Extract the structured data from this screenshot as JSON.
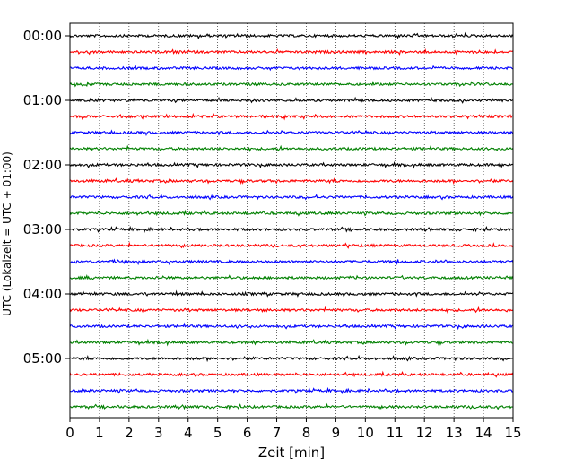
{
  "chart_data": {
    "type": "line",
    "title": "",
    "xlabel": "Zeit  [min]",
    "ylabel": "UTC (Lokalzeit = UTC + 01:00)",
    "xlim": [
      0,
      15
    ],
    "x_ticks": [
      "0",
      "1",
      "2",
      "3",
      "4",
      "5",
      "6",
      "7",
      "8",
      "9",
      "10",
      "11",
      "12",
      "13",
      "14",
      "15"
    ],
    "y_ticks": [
      "00:00",
      "01:00",
      "02:00",
      "03:00",
      "04:00",
      "05:00"
    ],
    "trace_start_times": [
      "00:00",
      "00:15",
      "00:30",
      "00:45",
      "01:00",
      "01:15",
      "01:30",
      "01:45",
      "02:00",
      "02:15",
      "02:30",
      "02:45",
      "03:00",
      "03:15",
      "03:30",
      "03:45",
      "04:00",
      "04:15",
      "04:30",
      "04:45",
      "05:00",
      "05:15",
      "05:30",
      "05:45"
    ],
    "trace_colors": [
      "#000000",
      "#ff0000",
      "#0000ff",
      "#008000"
    ],
    "grid": "vertical dotted lines at each minute"
  }
}
